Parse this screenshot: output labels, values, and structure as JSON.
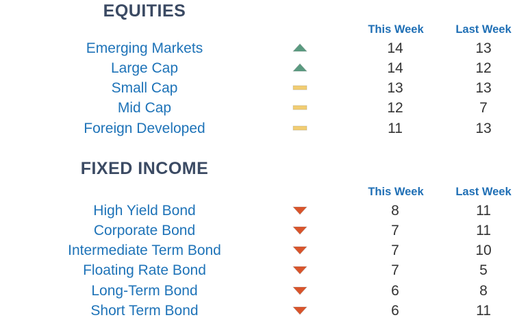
{
  "sections": [
    {
      "title": "EQUITIES",
      "col_this_week": "This Week",
      "col_last_week": "Last Week",
      "rows": [
        {
          "name": "Emerging Markets",
          "trend": "up",
          "this_week": "14",
          "last_week": "13"
        },
        {
          "name": "Large Cap",
          "trend": "up",
          "this_week": "14",
          "last_week": "12"
        },
        {
          "name": "Small Cap",
          "trend": "flat",
          "this_week": "13",
          "last_week": "13"
        },
        {
          "name": "Mid Cap",
          "trend": "flat",
          "this_week": "12",
          "last_week": "7"
        },
        {
          "name": "Foreign Developed",
          "trend": "flat",
          "this_week": "11",
          "last_week": "13"
        }
      ]
    },
    {
      "title": "FIXED INCOME",
      "col_this_week": "This Week",
      "col_last_week": "Last Week",
      "rows": [
        {
          "name": "High Yield Bond",
          "trend": "down",
          "this_week": "8",
          "last_week": "11"
        },
        {
          "name": "Corporate Bond",
          "trend": "down",
          "this_week": "7",
          "last_week": "11"
        },
        {
          "name": "Intermediate Term Bond",
          "trend": "down",
          "this_week": "7",
          "last_week": "10"
        },
        {
          "name": "Floating Rate Bond",
          "trend": "down",
          "this_week": "7",
          "last_week": "5"
        },
        {
          "name": "Long-Term Bond",
          "trend": "down",
          "this_week": "6",
          "last_week": "8"
        },
        {
          "name": "Short Term Bond",
          "trend": "down",
          "this_week": "6",
          "last_week": "11"
        }
      ]
    }
  ],
  "icons": {
    "up": {
      "name": "up-triangle-icon",
      "color": "#5a9a80"
    },
    "flat": {
      "name": "flat-bar-icon",
      "color": "#f2cd72"
    },
    "down": {
      "name": "down-triangle-icon",
      "color": "#d9542b"
    }
  }
}
